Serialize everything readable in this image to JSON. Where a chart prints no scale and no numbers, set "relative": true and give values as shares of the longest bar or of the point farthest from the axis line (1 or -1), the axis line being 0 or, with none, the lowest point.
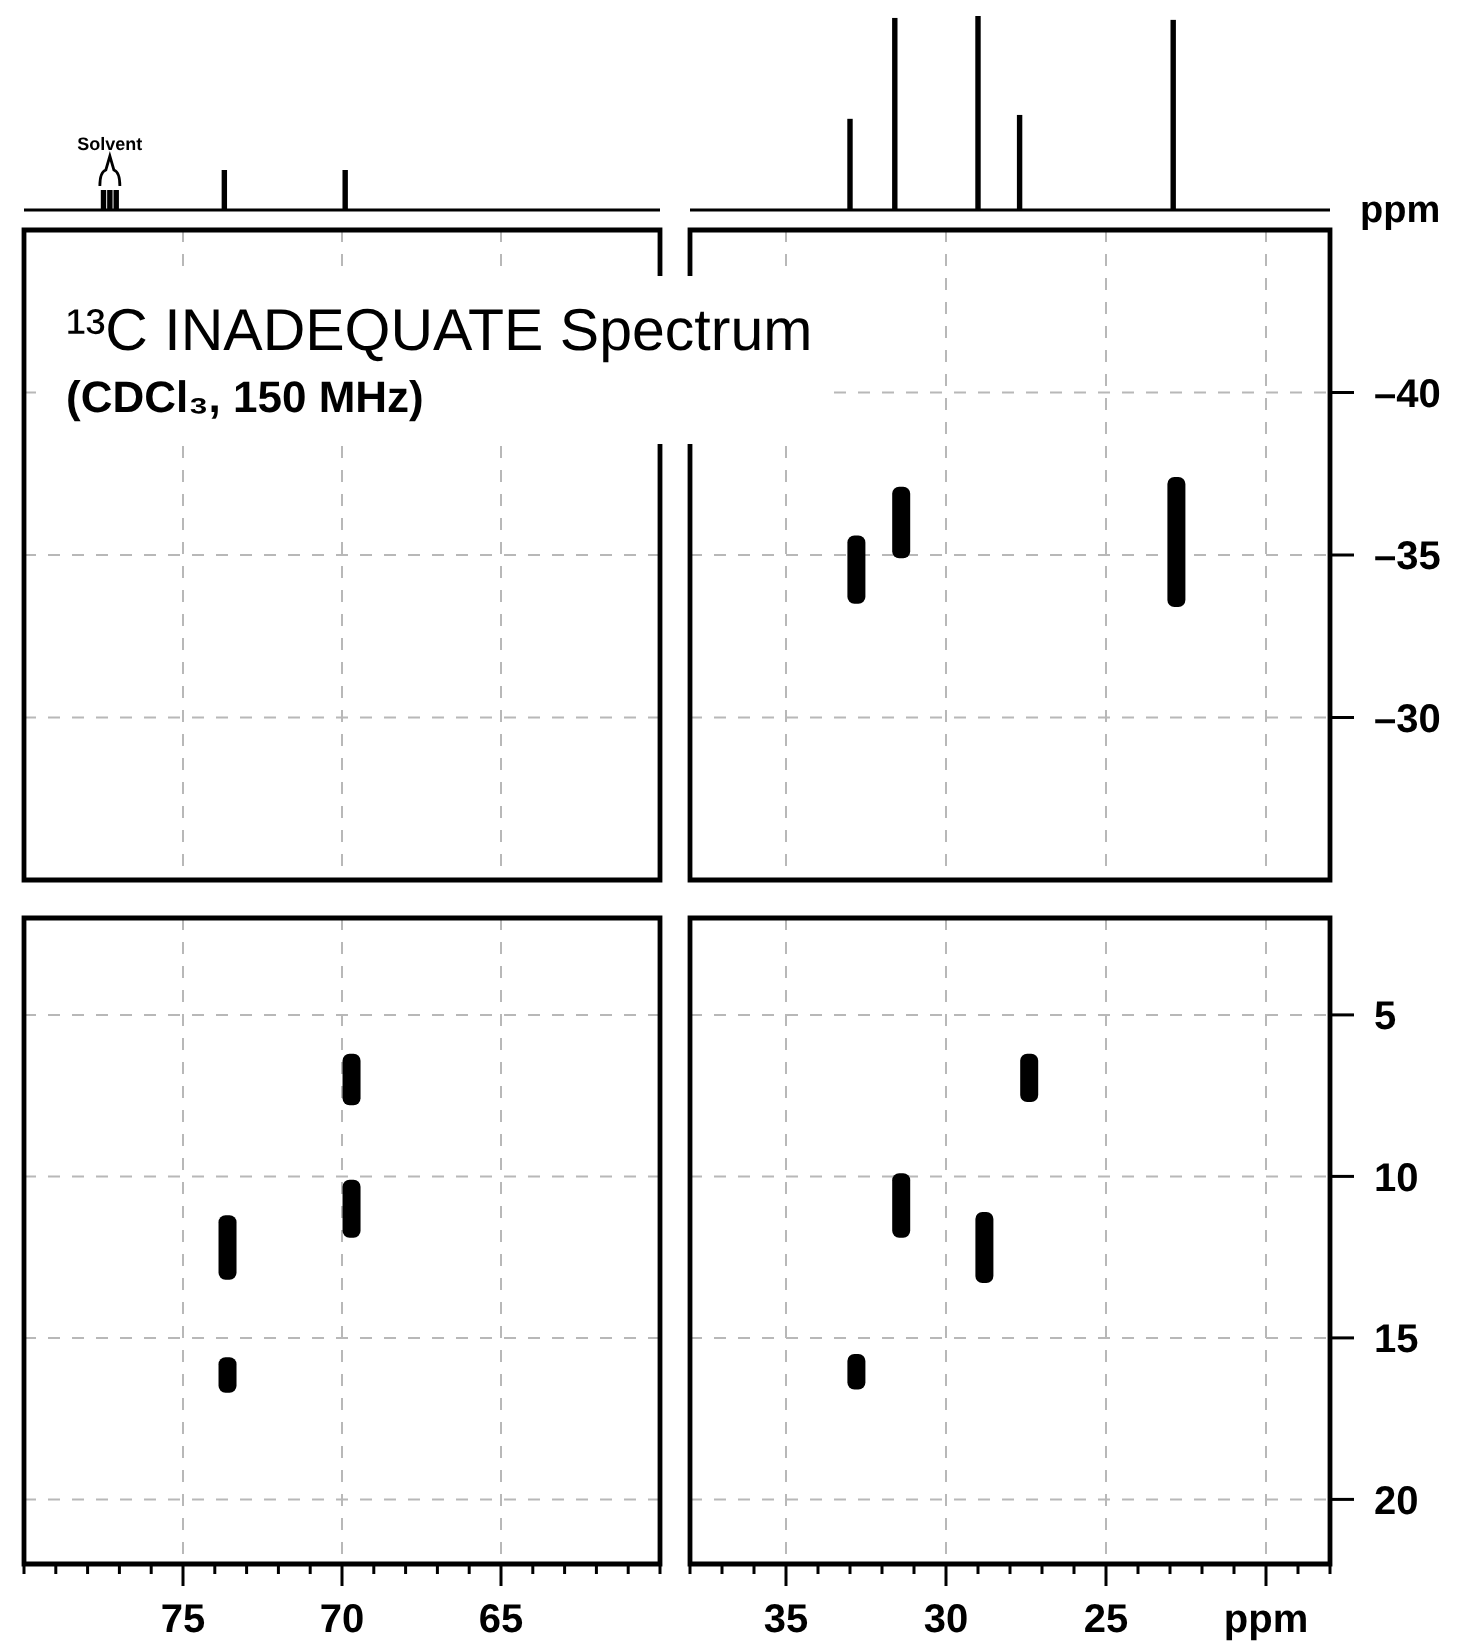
{
  "chart_data": [
    {
      "type": "bar",
      "relative": true,
      "x": [
        77.5,
        77.3,
        77.1,
        73.7,
        69.9
      ],
      "values": [
        0.5,
        0.5,
        0.5,
        1,
        1
      ],
      "color": "#000000",
      "xlim": [
        80,
        60
      ],
      "tick_labels": false,
      "annotations": [
        {
          "text": "Solvent",
          "x": 77.3,
          "y": 0.5
        }
      ]
    },
    {
      "type": "bar",
      "relative": true,
      "x": [
        33.0,
        31.6,
        29.0,
        27.7,
        22.9
      ],
      "values": [
        0.47,
        0.99,
        1,
        0.49,
        0.98
      ],
      "color": "#000000",
      "xlim": [
        38,
        18
      ],
      "xlabel": "ppm",
      "tick_labels": false
    },
    {
      "type": "bar",
      "title": "¹³C INADEQUATE Spectrum",
      "subtitle": "(CDCl₃, 150 MHz)",
      "xlim": [
        80,
        60
      ],
      "ylim": [
        -25,
        -45
      ],
      "xticks": [
        75,
        70,
        65
      ],
      "yticks": [
        -40,
        -35,
        -30
      ],
      "grid": true,
      "tick_labels": false
    },
    {
      "type": "bar",
      "x": [
        32.8,
        31.4,
        22.8
      ],
      "base": [
        -35.6,
        -37.1,
        -37.4
      ],
      "values": [
        2.1,
        2.2,
        4.0
      ],
      "color": "#000000",
      "xlim": [
        38,
        18
      ],
      "ylim": [
        -25,
        -45
      ],
      "xticks": [
        35,
        30,
        25,
        20
      ],
      "yticks": [
        {
          "value": -40,
          "label": "–40"
        },
        {
          "value": -35,
          "label": "–35"
        },
        {
          "value": -30,
          "label": "–30"
        }
      ],
      "grid": true,
      "tick_labels": "y"
    },
    {
      "type": "bar",
      "x": [
        73.6,
        69.7
      ],
      "series": [
        {
          "color": "#000000",
          "base": [
            11.2,
            6.2
          ],
          "values": [
            2.0,
            1.6
          ]
        },
        {
          "color": "#000000",
          "base": [
            15.6,
            10.1
          ],
          "values": [
            1.1,
            1.8
          ]
        }
      ],
      "xlim": [
        80,
        60
      ],
      "ylim": [
        22,
        2
      ],
      "xticks": [
        {
          "value": 80,
          "label": null
        },
        {
          "value": 79,
          "label": null
        },
        {
          "value": 78,
          "label": null
        },
        {
          "value": 77,
          "label": null
        },
        {
          "value": 76,
          "label": null
        },
        75,
        {
          "value": 74,
          "label": null
        },
        {
          "value": 73,
          "label": null
        },
        {
          "value": 72,
          "label": null
        },
        {
          "value": 71,
          "label": null
        },
        70,
        {
          "value": 69,
          "label": null
        },
        {
          "value": 68,
          "label": null
        },
        {
          "value": 67,
          "label": null
        },
        {
          "value": 66,
          "label": null
        },
        65,
        {
          "value": 64,
          "label": null
        },
        {
          "value": 63,
          "label": null
        },
        {
          "value": 62,
          "label": null
        },
        {
          "value": 61,
          "label": null
        },
        {
          "value": 60,
          "label": null
        }
      ],
      "yticks": [
        5,
        10,
        15,
        20
      ],
      "grid": true,
      "tick_labels": "x"
    },
    {
      "type": "bar",
      "x": [
        32.8,
        31.4,
        28.8,
        27.4
      ],
      "base": [
        15.5,
        9.9,
        11.1,
        6.2
      ],
      "values": [
        1.1,
        2.0,
        2.2,
        1.5
      ],
      "color": "#000000",
      "xlim": [
        38,
        18
      ],
      "ylim": [
        22,
        2
      ],
      "xticks": [
        {
          "value": 38,
          "label": null
        },
        {
          "value": 37,
          "label": null
        },
        {
          "value": 36,
          "label": null
        },
        35,
        {
          "value": 34,
          "label": null
        },
        {
          "value": 33,
          "label": null
        },
        {
          "value": 32,
          "label": null
        },
        {
          "value": 31,
          "label": null
        },
        30,
        {
          "value": 29,
          "label": null
        },
        {
          "value": 28,
          "label": null
        },
        {
          "value": 27,
          "label": null
        },
        {
          "value": 26,
          "label": null
        },
        25,
        {
          "value": 24,
          "label": null
        },
        {
          "value": 23,
          "label": null
        },
        {
          "value": 22,
          "label": null
        },
        {
          "value": 21,
          "label": null
        },
        {
          "value": 20,
          "label": "ppm"
        },
        {
          "value": 19,
          "label": null
        },
        {
          "value": 18,
          "label": null
        }
      ],
      "yticks": [
        5,
        10,
        15,
        20
      ],
      "grid": true
    }
  ]
}
